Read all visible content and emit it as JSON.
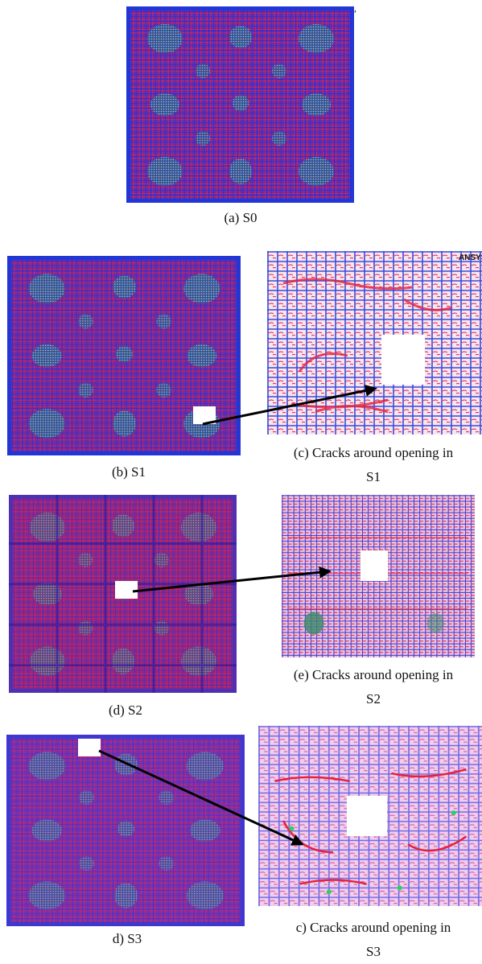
{
  "figures": [
    {
      "id": "s0",
      "caption": "(a) S0"
    },
    {
      "id": "s1",
      "caption": "(b) S1"
    },
    {
      "id": "s1_zoom",
      "caption_lines": [
        "(c) Cracks around opening in",
        "S1"
      ],
      "tag": "ANSYS"
    },
    {
      "id": "s2",
      "caption": "(d) S2"
    },
    {
      "id": "s2_zoom",
      "caption_lines": [
        "(e) Cracks around opening in",
        "S2"
      ]
    },
    {
      "id": "s3",
      "caption": "d) S3"
    },
    {
      "id": "s3_zoom",
      "caption_lines": [
        "c) Cracks around opening in",
        "S3"
      ]
    }
  ],
  "colors": {
    "slab_base": "#5a32b4",
    "mesh_red": "#d8204a",
    "mesh_blue": "#2a2ad8",
    "edge_blue": "#2236d6",
    "crack_green": "#7fe0a0",
    "zoom_base": "#f4e2f0",
    "zoom_crack": "#e8203a",
    "arrow": "#000000"
  }
}
